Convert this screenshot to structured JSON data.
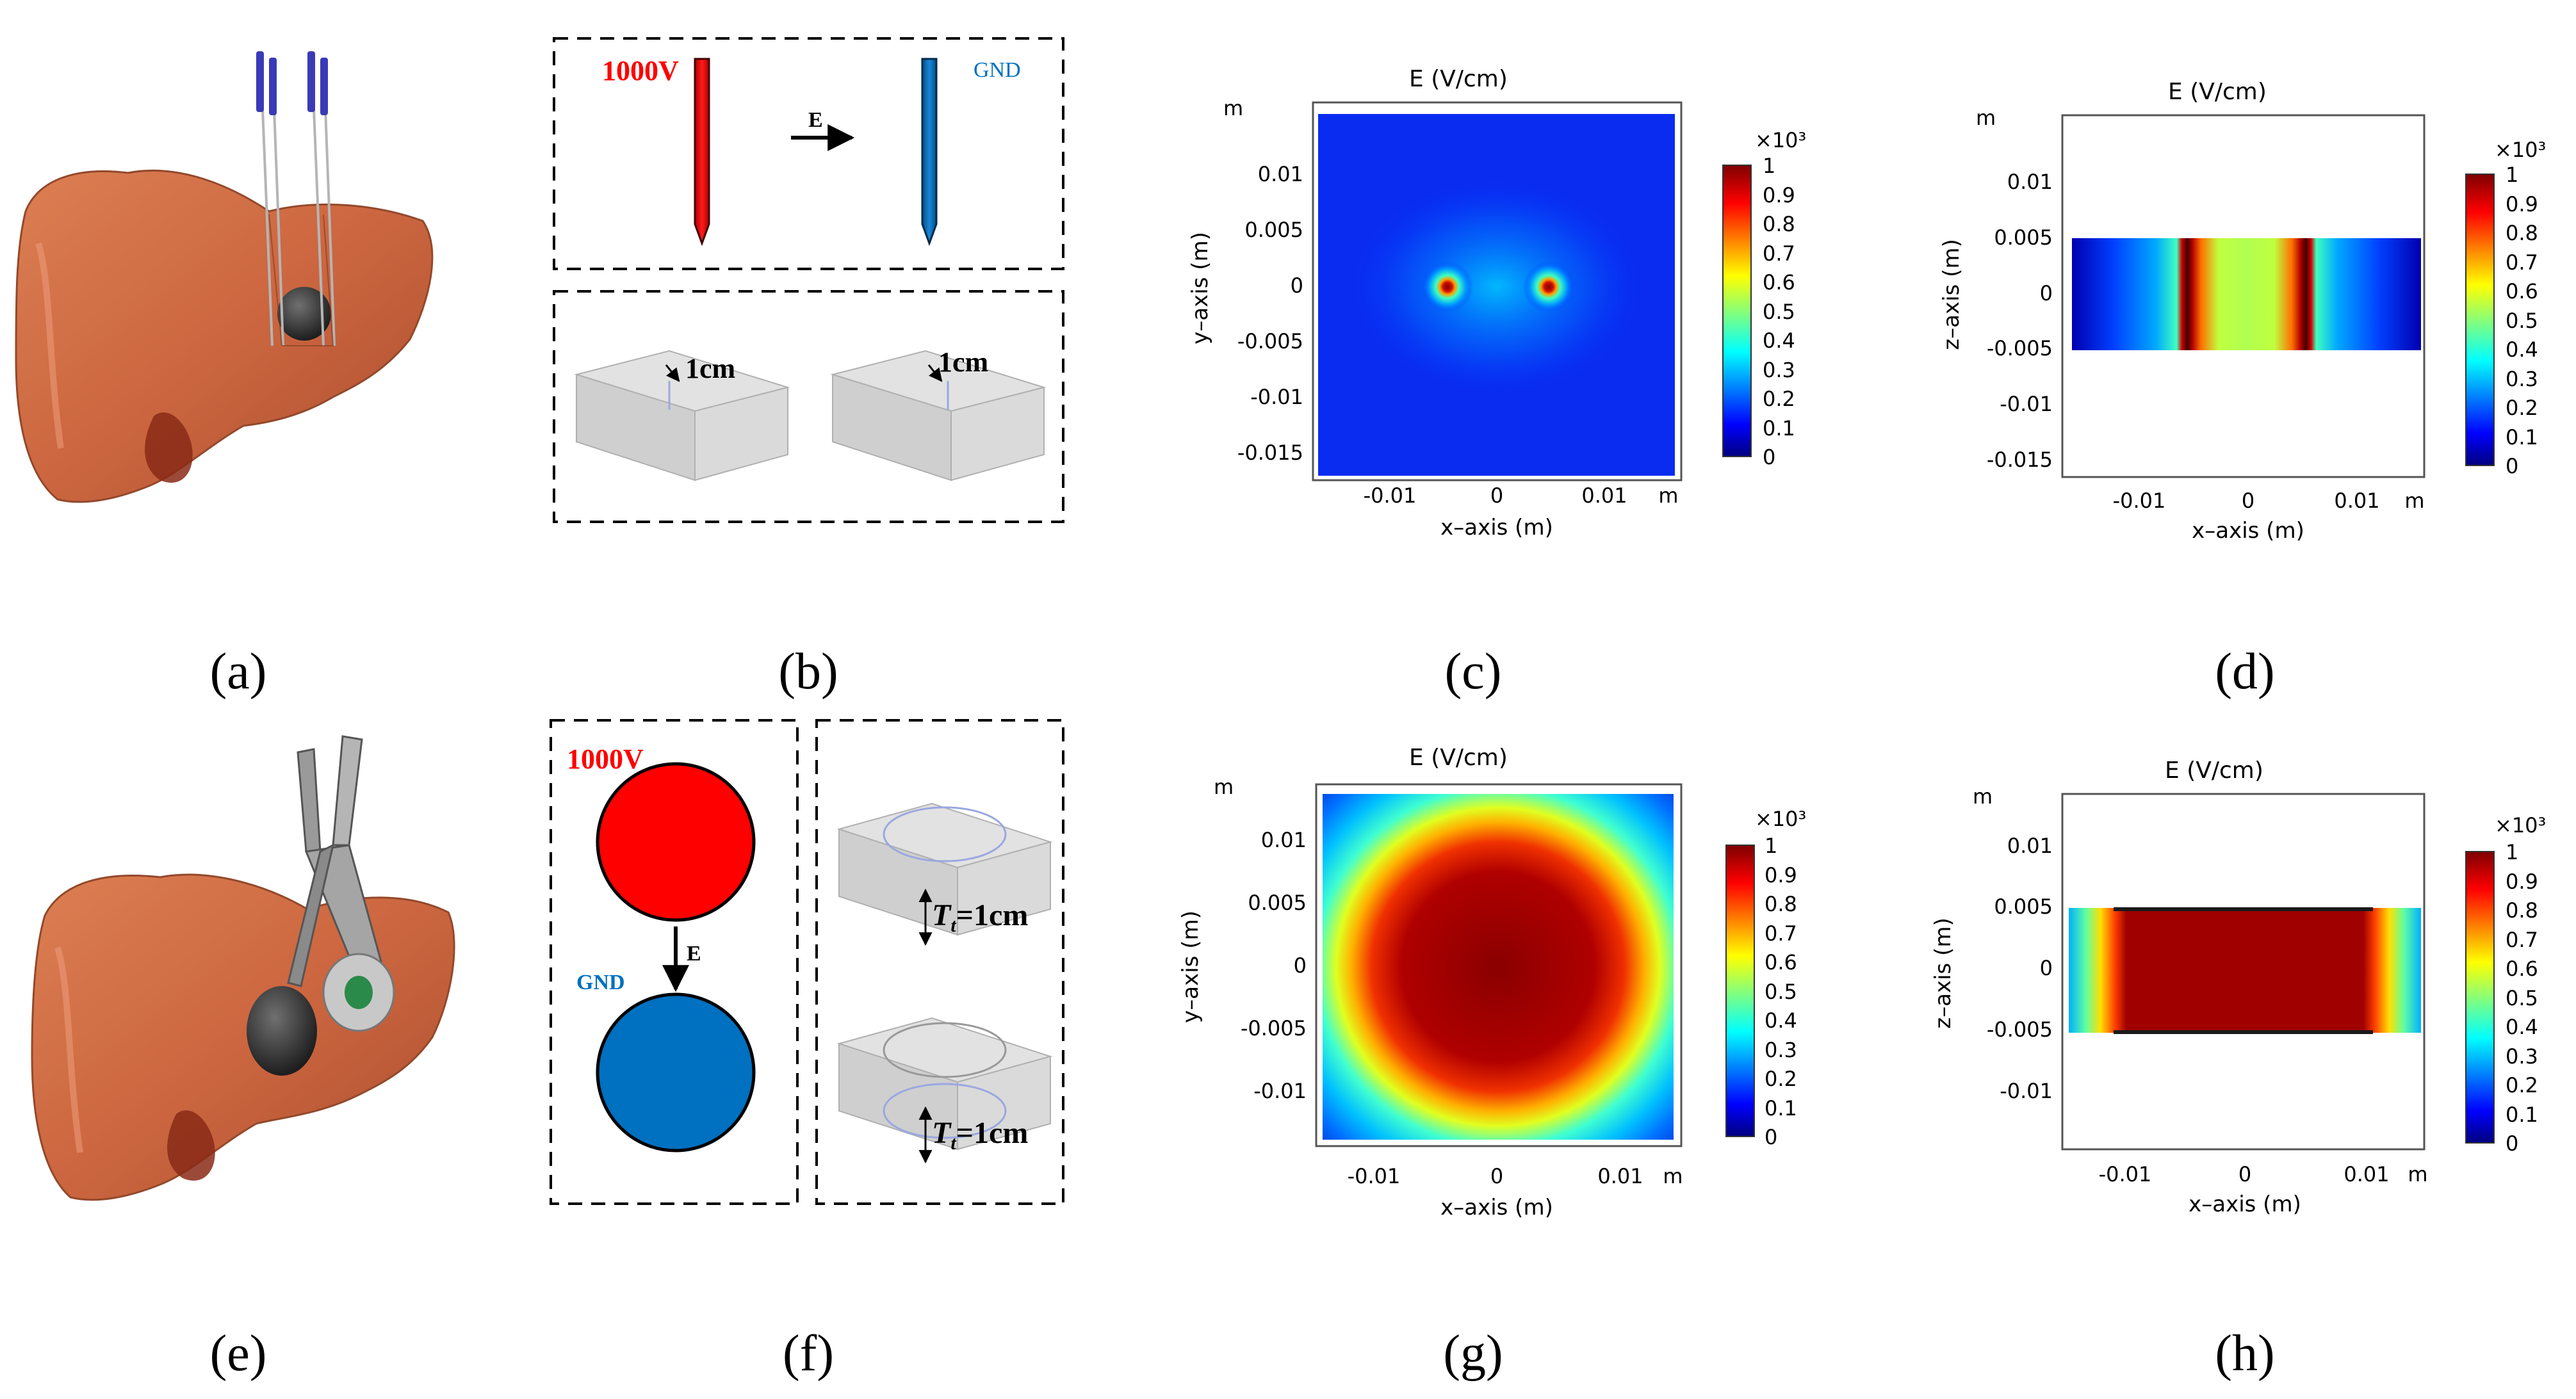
{
  "panel_labels": {
    "a": "(a)",
    "b": "(b)",
    "c": "(c)",
    "d": "(d)",
    "e": "(e)",
    "f": "(f)",
    "g": "(g)",
    "h": "(h)"
  },
  "schematics": {
    "b": {
      "voltage": "1000V",
      "ground": "GND",
      "field": "E",
      "depth_left": "1cm",
      "depth_right": "1cm"
    },
    "f": {
      "voltage": "1000V",
      "ground": "GND",
      "field": "E",
      "thickness_prefix": "T",
      "thickness_sub": "t",
      "thickness_value": "=1cm"
    }
  },
  "colors": {
    "positive": "#ff0000",
    "ground": "#0070c0",
    "tissue": "#c8552c",
    "colorbar": [
      "#00007f",
      "#0000ff",
      "#00ffff",
      "#ffff00",
      "#ff0000",
      "#7f0000"
    ]
  },
  "chart_data": [
    {
      "id": "c",
      "type": "heatmap",
      "title": "E   (V/cm)",
      "xlabel": "x–axis (m)",
      "ylabel": "y–axis (m)",
      "unit": "m",
      "xlim": [
        -0.017,
        0.017
      ],
      "ylim": [
        -0.017,
        0.016
      ],
      "xticks": [
        "-0.01",
        "0",
        "0.01"
      ],
      "yticks": [
        "0.01",
        "0.005",
        "0",
        "-0.005",
        "-0.01",
        "-0.015"
      ],
      "colorbar": {
        "scale": "×10³",
        "range": [
          0,
          1
        ],
        "ticks": [
          "1",
          "0.9",
          "0.8",
          "0.7",
          "0.6",
          "0.5",
          "0.4",
          "0.3",
          "0.2",
          "0.1",
          "0"
        ]
      },
      "description": "two needle electrodes at x = ±0.0045 m"
    },
    {
      "id": "d",
      "type": "heatmap",
      "title": "E   (V/cm)",
      "xlabel": "x–axis (m)",
      "ylabel": "z–axis (m)",
      "unit": "m",
      "xlim": [
        -0.016,
        0.016
      ],
      "ylim": [
        -0.017,
        0.015
      ],
      "xticks": [
        "-0.01",
        "0",
        "0.01"
      ],
      "yticks": [
        "0.01",
        "0.005",
        "0",
        "-0.005",
        "-0.01",
        "-0.015"
      ],
      "colorbar": {
        "scale": "×10³",
        "range": [
          0,
          1
        ],
        "ticks": [
          "1",
          "0.9",
          "0.8",
          "0.7",
          "0.6",
          "0.5",
          "0.4",
          "0.3",
          "0.2",
          "0.1",
          "0"
        ]
      },
      "description": "tissue slab from z = -0.005 to 0.005 m"
    },
    {
      "id": "g",
      "type": "heatmap",
      "title": "E   (V/cm)",
      "xlabel": "x–axis (m)",
      "ylabel": "y–axis (m)",
      "unit": "m",
      "xlim": [
        -0.014,
        0.014
      ],
      "ylim": [
        -0.014,
        0.014
      ],
      "xticks": [
        "-0.01",
        "0",
        "0.01"
      ],
      "yticks": [
        "0.01",
        "0.005",
        "0",
        "-0.005",
        "-0.01"
      ],
      "colorbar": {
        "scale": "×10³",
        "range": [
          0,
          1
        ],
        "ticks": [
          "1",
          "0.9",
          "0.8",
          "0.7",
          "0.6",
          "0.5",
          "0.4",
          "0.3",
          "0.2",
          "0.1",
          "0"
        ]
      },
      "description": "plate electrodes, radius ≈ 0.0125 m"
    },
    {
      "id": "h",
      "type": "heatmap",
      "title": "E   (V/cm)",
      "xlabel": "x–axis (m)",
      "ylabel": "z–axis (m)",
      "unit": "m",
      "xlim": [
        -0.015,
        0.015
      ],
      "ylim": [
        -0.015,
        0.013
      ],
      "xticks": [
        "-0.01",
        "0",
        "0.01"
      ],
      "yticks": [
        "0.01",
        "0.005",
        "0",
        "-0.005",
        "-0.01"
      ],
      "colorbar": {
        "scale": "×10³",
        "range": [
          0,
          1
        ],
        "ticks": [
          "1",
          "0.9",
          "0.8",
          "0.7",
          "0.6",
          "0.5",
          "0.4",
          "0.3",
          "0.2",
          "0.1",
          "0"
        ]
      },
      "description": "tissue slab between plates, z = -0.005 to 0.005 m"
    }
  ]
}
